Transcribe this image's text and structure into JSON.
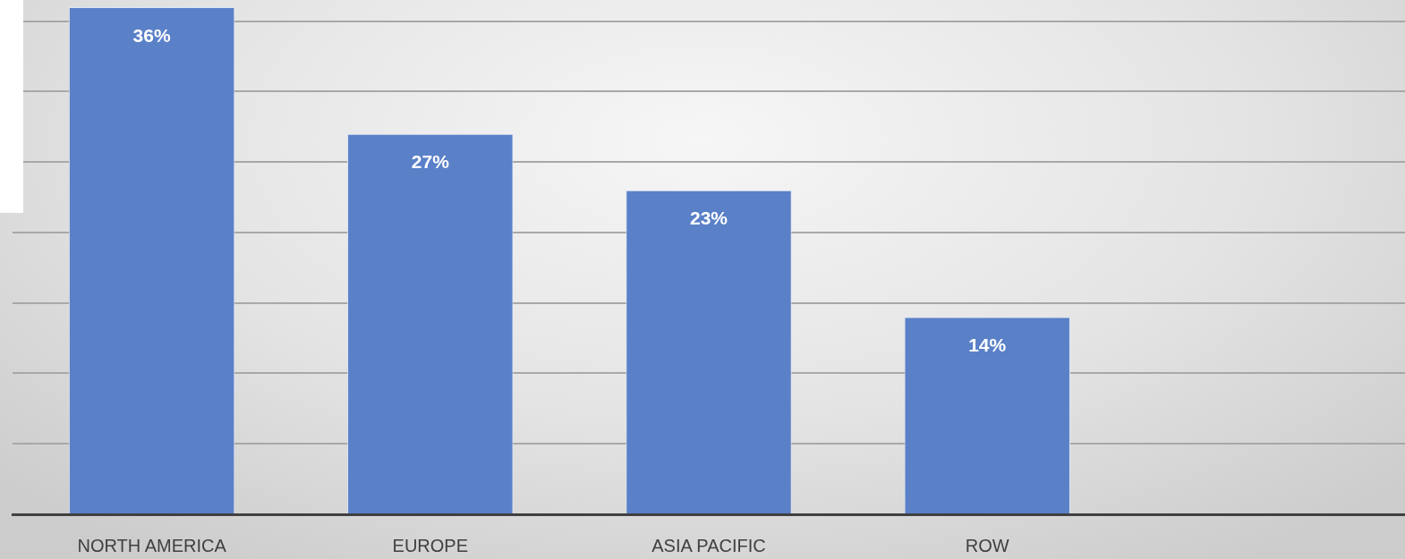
{
  "chart_data": {
    "type": "bar",
    "categories": [
      "NORTH AMERICA",
      "EUROPE",
      "ASIA PACIFIC",
      "ROW",
      null
    ],
    "values": [
      36,
      27,
      23,
      14,
      null
    ],
    "color": "#5a80c8",
    "value_labels": [
      "36%",
      "27%",
      "23%",
      "14%",
      null
    ],
    "ylim": [
      0,
      36.5
    ],
    "yticks": [
      {
        "value": 0,
        "label": null
      },
      {
        "value": 5,
        "label": null
      },
      {
        "value": 10,
        "label": null
      },
      {
        "value": 15,
        "label": null
      },
      {
        "value": 20,
        "label": null
      },
      {
        "value": 25,
        "label": null
      },
      {
        "value": 30,
        "label": null
      },
      {
        "value": 35,
        "label": null
      }
    ],
    "grid": "y",
    "tick_labels": "x"
  }
}
